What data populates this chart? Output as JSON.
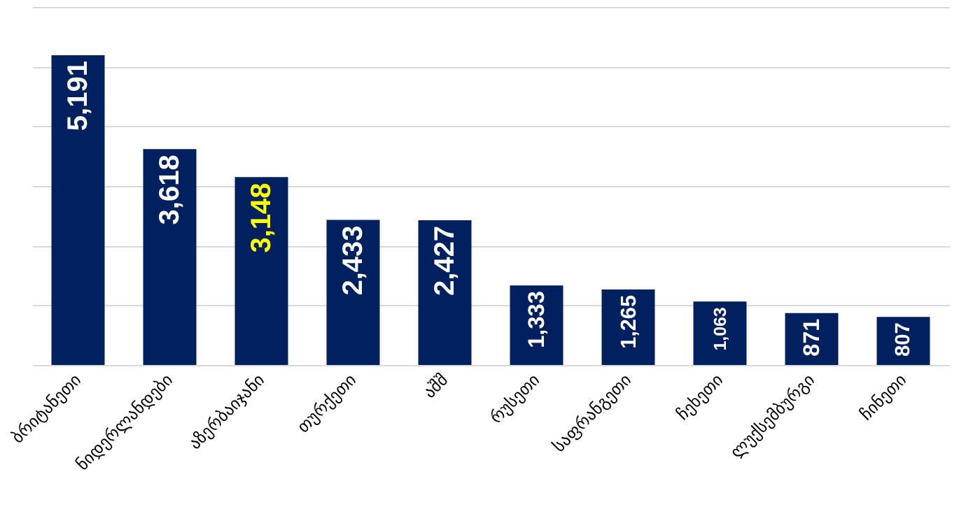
{
  "chart_data": {
    "type": "bar",
    "categories": [
      "ბრიტანეთი",
      "ნიდერლანდები",
      "აზერბაიჯანი",
      "თურქეთი",
      "აშშ",
      "რუსეთი",
      "საფრანგეთი",
      "ჩეხეთი",
      "ლუქსემბურგი",
      "ჩინეთი"
    ],
    "values": [
      5191,
      3618,
      3148,
      2433,
      2427,
      1333,
      1265,
      1063,
      871,
      807
    ],
    "color": "#002060",
    "value_labels": [
      "5,191",
      "3,618",
      null,
      "2,433",
      "2,427",
      "1,333",
      "1,265",
      "1,063",
      "871",
      "807"
    ],
    "annotations": [
      {
        "text": "3,148",
        "x": "აზერბაიჯანი",
        "y": 3148
      }
    ],
    "ylim": [
      0,
      6000
    ],
    "yticks": [
      {
        "value": 0,
        "label": null
      },
      {
        "value": 1000,
        "label": null
      },
      {
        "value": 2000,
        "label": null
      },
      {
        "value": 3000,
        "label": null
      },
      {
        "value": 4000,
        "label": null
      },
      {
        "value": 5000,
        "label": null
      },
      {
        "value": 6000,
        "label": null
      }
    ],
    "tick_labels": "x",
    "grid": "y"
  }
}
